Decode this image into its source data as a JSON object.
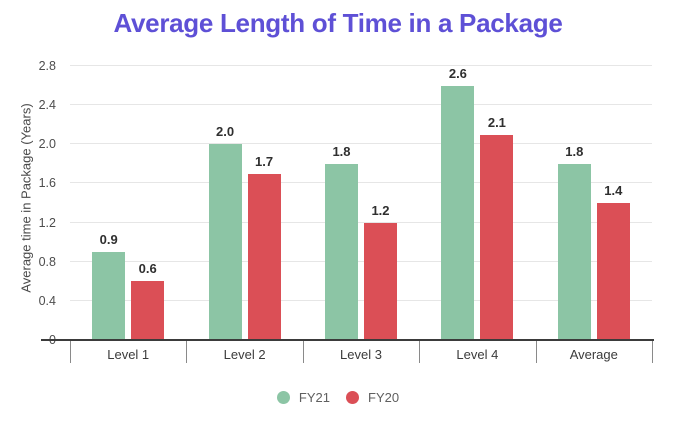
{
  "chart_data": {
    "type": "bar",
    "title": "Average Length of Time in a Package",
    "title_color": "#5e50d6",
    "xlabel": "",
    "ylabel": "Average time in Package (Years)",
    "categories": [
      "Level 1",
      "Level 2",
      "Level 3",
      "Level 4",
      "Average"
    ],
    "series": [
      {
        "name": "FY21",
        "color": "#8cc5a5",
        "values": [
          0.9,
          2.0,
          1.8,
          2.6,
          1.8
        ]
      },
      {
        "name": "FY20",
        "color": "#db4f56",
        "values": [
          0.6,
          1.7,
          1.2,
          2.1,
          1.4
        ]
      }
    ],
    "ylim": [
      0,
      2.8
    ],
    "yticks": [
      "0",
      "0.4",
      "0.8",
      "1.2",
      "1.6",
      "2.0",
      "2.4",
      "2.8"
    ],
    "grid": true,
    "value_labels_shown": true,
    "value_label_format": "one-decimal",
    "legend_position": "bottom",
    "axis_line_color": "#3b3b3b",
    "gridline_color": "#e6e6e6"
  }
}
